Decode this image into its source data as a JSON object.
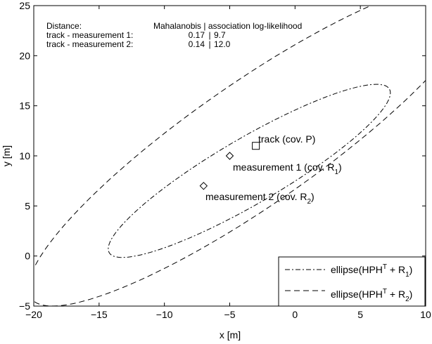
{
  "chart_data": {
    "type": "scatter",
    "title": "",
    "xlabel": "x [m]",
    "ylabel": "y [m]",
    "xlim": [
      -20,
      10
    ],
    "ylim": [
      -5,
      25
    ],
    "xticks": [
      -20,
      -15,
      -10,
      -5,
      0,
      5,
      10
    ],
    "yticks": [
      -5,
      0,
      5,
      10,
      15,
      20,
      25
    ],
    "grid": false,
    "legend_position": "bottom-right",
    "points": [
      {
        "name": "track",
        "x": -3,
        "y": 11,
        "marker": "square",
        "label": "track (cov. P)"
      },
      {
        "name": "measurement-1",
        "x": -5,
        "y": 10,
        "marker": "diamond",
        "label": "measurement 1 (cov. R",
        "sub": "1",
        "tail": ")"
      },
      {
        "name": "measurement-2",
        "x": -7,
        "y": 7,
        "marker": "diamond",
        "label": "measurement 2 (cov. R",
        "sub": "2",
        "tail": ")"
      }
    ],
    "ellipses": [
      {
        "name": "ellipse-1",
        "style": "dashdot",
        "center": [
          -3.5,
          8.5
        ],
        "a": 13.5,
        "b": 3.0,
        "angle_deg": 38
      },
      {
        "name": "ellipse-2",
        "style": "dashed",
        "center": [
          -3.2,
          11.2
        ],
        "a": 23.0,
        "b": 5.5,
        "angle_deg": 43
      }
    ],
    "legend": [
      {
        "style": "dashdot",
        "text": "ellipse(HPH",
        "sup": "T",
        "mid": " + R",
        "sub": "1",
        "tail": ")"
      },
      {
        "style": "dashed",
        "text": "ellipse(HPH",
        "sup": "T",
        "mid": " + R",
        "sub": "2",
        "tail": ")"
      }
    ],
    "annotation": {
      "header_left": "Distance:",
      "header_right": "Mahalanobis | association log-likelihood",
      "rows": [
        {
          "label": "track - measurement 1:",
          "maha": "0.17",
          "sep": "|",
          "ll": "9.7"
        },
        {
          "label": "track - measurement 2:",
          "maha": "0.14",
          "sep": "|",
          "ll": "12.0"
        }
      ]
    }
  }
}
